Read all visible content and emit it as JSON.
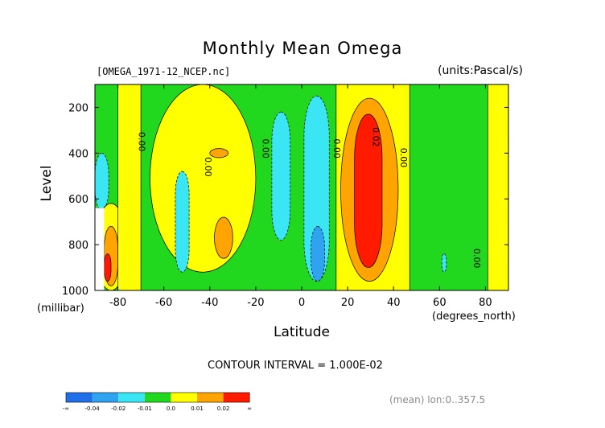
{
  "figure": {
    "title": "Monthly Mean Omega",
    "file_label": "[OMEGA_1971-12_NCEP.nc]",
    "units_label": "(units:Pascal/s)",
    "contour_interval": "CONTOUR INTERVAL = 1.000E-02",
    "mean_label": "(mean) lon:0..357.5"
  },
  "colors": {
    "-0.04": "#1e6fe8",
    "-0.02": "#2fa3f0",
    "-0.01": "#3be6f4",
    "0.0": "#22d81e",
    "0.01": "#ffff00",
    "0.02": "#ffa400",
    "inf": "#ff1a00"
  },
  "chart_data": {
    "type": "heatmap",
    "title": "Monthly Mean Omega",
    "xlabel": "Latitude",
    "xunit": "(degrees_north)",
    "ylabel": "Level",
    "yunit": "(millibar)",
    "xlim": [
      -90,
      90
    ],
    "ylim": [
      1000,
      100
    ],
    "xticks": [
      -80,
      -60,
      -40,
      -20,
      0,
      20,
      40,
      60,
      80
    ],
    "yticks": [
      200,
      400,
      600,
      800,
      1000
    ],
    "legend": {
      "labels": [
        "-∞",
        "-0.04",
        "-0.02",
        "-0.01",
        "0.0",
        "0.01",
        "0.02",
        "∞"
      ],
      "colors": [
        "#1e6fe8",
        "#2fa3f0",
        "#3be6f4",
        "#22d81e",
        "#ffff00",
        "#ffa400",
        "#ff1a00"
      ]
    },
    "contour_labels": [
      {
        "text": "0.00",
        "lat": -71,
        "level": 350
      },
      {
        "text": "0.00",
        "lat": -42,
        "level": 460
      },
      {
        "text": "0.00",
        "lat": -17,
        "level": 380
      },
      {
        "text": "0.00",
        "lat": 14,
        "level": 380
      },
      {
        "text": "0.02",
        "lat": 31,
        "level": 330
      },
      {
        "text": "0.00",
        "lat": 43,
        "level": 420
      },
      {
        "text": "0.00",
        "lat": 75,
        "level": 860
      }
    ],
    "regions": [
      {
        "value": 0.0,
        "lat": [
          -90,
          90
        ],
        "level": [
          100,
          1000
        ]
      },
      {
        "value": -0.01,
        "lat": [
          -90,
          -84
        ],
        "level": [
          400,
          650
        ]
      },
      {
        "value": 0.01,
        "lat": [
          -90,
          -76
        ],
        "level": [
          620,
          1000
        ]
      },
      {
        "value": 0.02,
        "lat": [
          -86,
          -80
        ],
        "level": [
          720,
          980
        ]
      },
      {
        "value": 0.03,
        "lat": [
          -86,
          -83
        ],
        "level": [
          840,
          960
        ]
      },
      {
        "value": 0.01,
        "lat": [
          -80,
          -70
        ],
        "level": [
          100,
          1000
        ]
      },
      {
        "value": 0.01,
        "lat": [
          -66,
          -20
        ],
        "level": [
          100,
          920
        ]
      },
      {
        "value": 0.02,
        "lat": [
          -40,
          -32
        ],
        "level": [
          380,
          420
        ]
      },
      {
        "value": 0.02,
        "lat": [
          -38,
          -30
        ],
        "level": [
          680,
          860
        ]
      },
      {
        "value": -0.01,
        "lat": [
          -55,
          -49
        ],
        "level": [
          480,
          920
        ]
      },
      {
        "value": -0.01,
        "lat": [
          -13,
          -5
        ],
        "level": [
          220,
          780
        ]
      },
      {
        "value": -0.01,
        "lat": [
          1,
          12
        ],
        "level": [
          150,
          960
        ]
      },
      {
        "value": -0.02,
        "lat": [
          4,
          10
        ],
        "level": [
          720,
          960
        ]
      },
      {
        "value": 0.01,
        "lat": [
          15,
          47
        ],
        "level": [
          100,
          1000
        ]
      },
      {
        "value": 0.02,
        "lat": [
          17,
          42
        ],
        "level": [
          160,
          960
        ]
      },
      {
        "value": 0.03,
        "lat": [
          23,
          35
        ],
        "level": [
          230,
          900
        ]
      },
      {
        "value": 0.01,
        "lat": [
          81,
          90
        ],
        "level": [
          100,
          1000
        ]
      },
      {
        "value": -0.01,
        "lat": [
          61,
          63
        ],
        "level": [
          840,
          920
        ]
      }
    ]
  }
}
